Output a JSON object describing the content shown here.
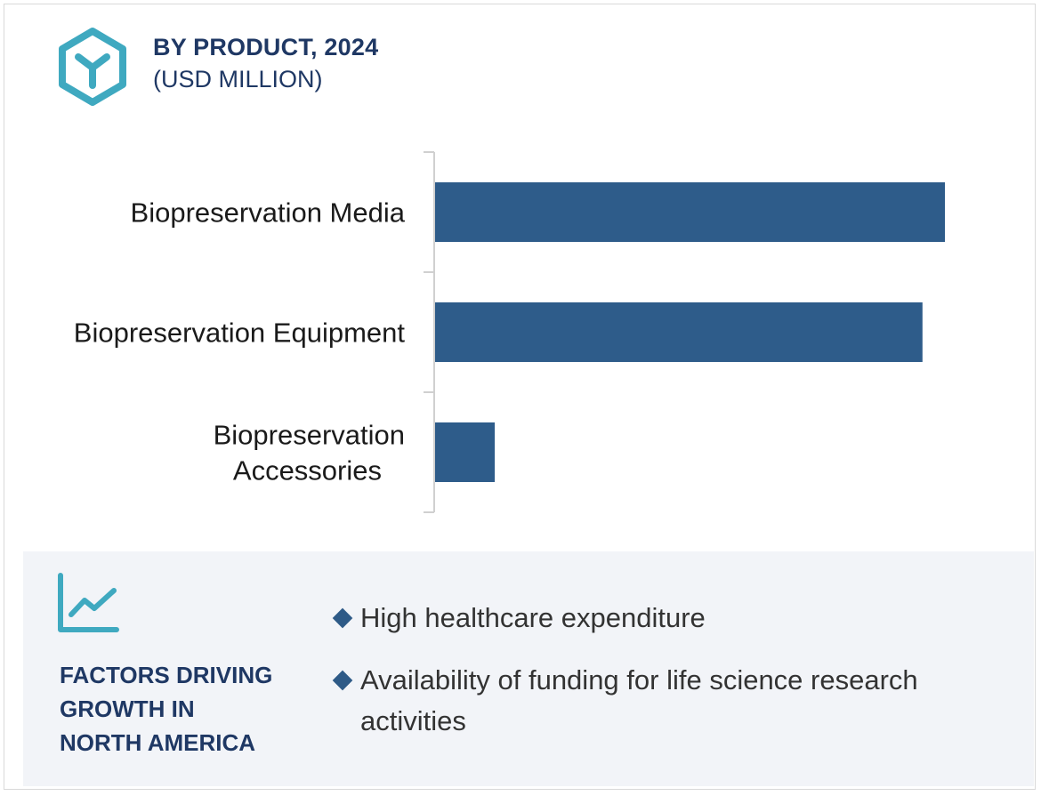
{
  "header": {
    "icon": "hexagon-y-icon",
    "title": "BY PRODUCT, 2024",
    "subtitle": "(USD MILLION)"
  },
  "chart_data": {
    "type": "bar",
    "orientation": "horizontal",
    "categories": [
      [
        "Biopreservation Media"
      ],
      [
        "Biopreservation Equipment"
      ],
      [
        "Biopreservation",
        "Accessories"
      ]
    ],
    "values": [
      100,
      95.6,
      11.7
    ],
    "value_scale": "relative (no axis values printed)",
    "grid": false,
    "legend": "none",
    "colors": {
      "bar": "#2e5c8a",
      "axis": "#d0d0d0"
    }
  },
  "factors": {
    "icon": "line-chart-icon",
    "title_lines": [
      "FACTORS DRIVING",
      "GROWTH IN",
      "NORTH AMERICA"
    ],
    "items": [
      {
        "lines": [
          "High healthcare expenditure"
        ]
      },
      {
        "lines": [
          "Availability of funding for life science research",
          "activities"
        ]
      }
    ],
    "colors": {
      "accent": "#3fa9c0",
      "heading": "#1f3864",
      "bullet": "#2e5a87"
    }
  }
}
